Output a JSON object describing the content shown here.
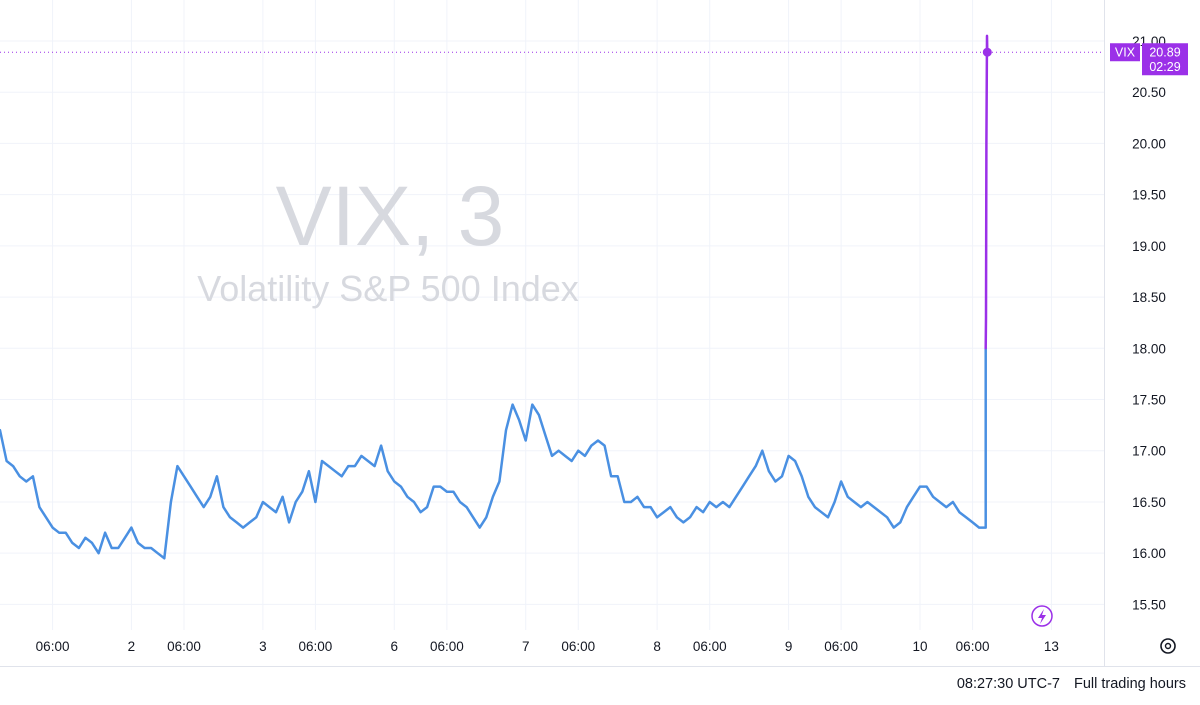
{
  "chart_data": {
    "type": "line",
    "title": "VIX, 3",
    "subtitle": "Volatility S&P 500 Index",
    "symbol": "VIX",
    "ylim": [
      15.25,
      21.4
    ],
    "y_ticks": [
      "15.50",
      "16.00",
      "16.50",
      "17.00",
      "17.50",
      "18.00",
      "18.50",
      "19.00",
      "19.50",
      "20.00",
      "20.50",
      "21.00"
    ],
    "x_ticks": [
      "06:00",
      "2",
      "06:00",
      "3",
      "06:00",
      "6",
      "06:00",
      "7",
      "06:00",
      "8",
      "06:00",
      "9",
      "06:00",
      "10",
      "06:00",
      "13"
    ],
    "x_tick_pos": [
      0.4,
      1.0,
      1.4,
      2.0,
      2.4,
      3.0,
      3.4,
      4.0,
      4.4,
      5.0,
      5.4,
      6.0,
      6.4,
      7.0,
      7.4,
      8.0
    ],
    "xlim": [
      0.0,
      8.4
    ],
    "series": [
      {
        "color": "#4a90e2",
        "x": [
          0.0,
          0.05,
          0.1,
          0.15,
          0.2,
          0.25,
          0.3,
          0.35,
          0.4,
          0.45,
          0.5,
          0.55,
          0.6,
          0.65,
          0.7,
          0.75,
          0.8,
          0.85,
          0.9,
          0.95,
          1.0,
          1.05,
          1.1,
          1.15,
          1.2,
          1.25,
          1.3,
          1.35,
          1.4,
          1.45,
          1.5,
          1.55,
          1.6,
          1.65,
          1.7,
          1.75,
          1.8,
          1.85,
          1.9,
          1.95,
          2.0,
          2.05,
          2.1,
          2.15,
          2.2,
          2.25,
          2.3,
          2.35,
          2.4,
          2.45,
          2.5,
          2.55,
          2.6,
          2.65,
          2.7,
          2.75,
          2.8,
          2.85,
          2.9,
          2.95,
          3.0,
          3.05,
          3.1,
          3.15,
          3.2,
          3.25,
          3.3,
          3.35,
          3.4,
          3.45,
          3.5,
          3.55,
          3.6,
          3.65,
          3.7,
          3.75,
          3.8,
          3.85,
          3.9,
          3.95,
          4.0,
          4.05,
          4.1,
          4.15,
          4.2,
          4.25,
          4.3,
          4.35,
          4.4,
          4.45,
          4.5,
          4.55,
          4.6,
          4.65,
          4.7,
          4.75,
          4.8,
          4.85,
          4.9,
          4.95,
          5.0,
          5.05,
          5.1,
          5.15,
          5.2,
          5.25,
          5.3,
          5.35,
          5.4,
          5.45,
          5.5,
          5.55,
          5.6,
          5.65,
          5.7,
          5.75,
          5.8,
          5.85,
          5.9,
          5.95,
          6.0,
          6.05,
          6.1,
          6.15,
          6.2,
          6.25,
          6.3,
          6.35,
          6.4,
          6.45,
          6.5,
          6.55,
          6.6,
          6.65,
          6.7,
          6.75,
          6.8,
          6.85,
          6.9,
          6.95,
          7.0,
          7.05,
          7.1,
          7.15,
          7.2,
          7.25,
          7.3,
          7.35,
          7.4,
          7.45,
          7.5,
          7.5
        ],
        "y": [
          17.2,
          16.9,
          16.85,
          16.75,
          16.7,
          16.75,
          16.45,
          16.35,
          16.25,
          16.2,
          16.2,
          16.1,
          16.05,
          16.15,
          16.1,
          16.0,
          16.2,
          16.05,
          16.05,
          16.15,
          16.25,
          16.1,
          16.05,
          16.05,
          16.0,
          15.95,
          16.5,
          16.85,
          16.75,
          16.65,
          16.55,
          16.45,
          16.55,
          16.75,
          16.45,
          16.35,
          16.3,
          16.25,
          16.3,
          16.35,
          16.5,
          16.45,
          16.4,
          16.55,
          16.3,
          16.5,
          16.6,
          16.8,
          16.5,
          16.9,
          16.85,
          16.8,
          16.75,
          16.85,
          16.85,
          16.95,
          16.9,
          16.85,
          17.05,
          16.8,
          16.7,
          16.65,
          16.55,
          16.5,
          16.4,
          16.45,
          16.65,
          16.65,
          16.6,
          16.6,
          16.5,
          16.45,
          16.35,
          16.25,
          16.35,
          16.55,
          16.7,
          17.2,
          17.45,
          17.3,
          17.1,
          17.45,
          17.35,
          17.15,
          16.95,
          17.0,
          16.95,
          16.9,
          17.0,
          16.95,
          17.05,
          17.1,
          17.05,
          16.75,
          16.75,
          16.5,
          16.5,
          16.55,
          16.45,
          16.45,
          16.35,
          16.4,
          16.45,
          16.35,
          16.3,
          16.35,
          16.45,
          16.4,
          16.5,
          16.45,
          16.5,
          16.45,
          16.55,
          16.65,
          16.75,
          16.85,
          17.0,
          16.8,
          16.7,
          16.75,
          16.95,
          16.9,
          16.75,
          16.55,
          16.45,
          16.4,
          16.35,
          16.5,
          16.7,
          16.55,
          16.5,
          16.45,
          16.5,
          16.45,
          16.4,
          16.35,
          16.25,
          16.3,
          16.45,
          16.55,
          16.65,
          16.65,
          16.55,
          16.5,
          16.45,
          16.5,
          16.4,
          16.35,
          16.3,
          16.25,
          16.25,
          18.0
        ]
      },
      {
        "color": "#9b30e8",
        "x": [
          7.5,
          7.502,
          7.505,
          7.51,
          7.512
        ],
        "y": [
          18.0,
          18.3,
          20.0,
          21.05,
          20.89
        ]
      }
    ],
    "last_value": "20.89",
    "countdown": "02:29",
    "grid": true,
    "legend": "none"
  },
  "colors": {
    "line": "#4a90e2",
    "spike": "#9b30e8",
    "grid": "#f0f3fa",
    "price_tag": "#9b30e8"
  },
  "icons": {
    "event_marker": "lightning-icon",
    "settings": "gear-icon"
  },
  "footer": {
    "time": "08:27:30 UTC-7",
    "mode": "Full trading hours"
  }
}
